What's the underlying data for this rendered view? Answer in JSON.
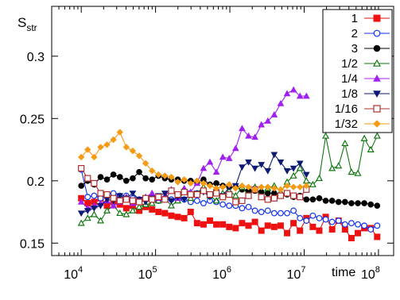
{
  "chart_data": {
    "type": "line",
    "title": "",
    "ylabel": "S",
    "ylabel_sub": "str",
    "xlabel": "time",
    "x_scale": "log",
    "xlim": [
      4000,
      160000000
    ],
    "ylim": [
      0.14,
      0.34
    ],
    "x_ticks": [
      {
        "value": 10000,
        "base": "10",
        "exp": "4"
      },
      {
        "value": 100000,
        "base": "10",
        "exp": "5"
      },
      {
        "value": 1000000,
        "base": "10",
        "exp": "6"
      },
      {
        "value": 10000000,
        "base": "10",
        "exp": "7"
      },
      {
        "value": 100000000,
        "base": "10",
        "exp": "8"
      }
    ],
    "y_ticks": [
      {
        "value": 0.15,
        "label": "0.15"
      },
      {
        "value": 0.2,
        "label": "0.2"
      },
      {
        "value": 0.25,
        "label": "0.25"
      },
      {
        "value": 0.3,
        "label": "0.3"
      }
    ],
    "grid": false,
    "legend_position": "top-right",
    "series": [
      {
        "name": "1",
        "color": "#ee1111",
        "marker": "square",
        "filled": true,
        "x": [
          10000,
          12200,
          14900,
          18200,
          22200,
          27100,
          33100,
          40400,
          49300,
          60200,
          73500,
          89700,
          109500,
          133600,
          163000,
          199000,
          243000,
          296500,
          362000,
          442000,
          539000,
          658000,
          803000,
          980000,
          1196000,
          1460000,
          1782000,
          2175000,
          2655000,
          3240000,
          3955000,
          4827000,
          5892000,
          7192000,
          8779000,
          10715000,
          13080000,
          15966000,
          19488000,
          23789000,
          29038000,
          35446000,
          43267000,
          52815000,
          64470000,
          78697000,
          96063000
        ],
        "y": [
          0.186,
          0.182,
          0.183,
          0.186,
          0.18,
          0.183,
          0.181,
          0.178,
          0.18,
          0.176,
          0.179,
          0.177,
          0.175,
          0.174,
          0.172,
          0.171,
          0.17,
          0.175,
          0.166,
          0.165,
          0.168,
          0.165,
          0.165,
          0.163,
          0.162,
          0.166,
          0.164,
          0.167,
          0.16,
          0.164,
          0.163,
          0.164,
          0.158,
          0.166,
          0.16,
          0.17,
          0.163,
          0.16,
          0.171,
          0.161,
          0.168,
          0.161,
          0.154,
          0.158,
          0.162,
          0.162,
          0.155
        ]
      },
      {
        "name": "2",
        "color": "#1133ee",
        "marker": "circle-open",
        "filled": false,
        "x": [
          10000,
          12200,
          14900,
          18200,
          22200,
          27100,
          33100,
          40400,
          49300,
          60200,
          73500,
          89700,
          109500,
          133600,
          163000,
          199000,
          243000,
          296500,
          362000,
          442000,
          539000,
          658000,
          803000,
          980000,
          1196000,
          1460000,
          1782000,
          2175000,
          2655000,
          3240000,
          3955000,
          4827000,
          5892000,
          7192000,
          8779000,
          10715000,
          13080000,
          15966000,
          19488000,
          23789000,
          29038000,
          35446000,
          43267000,
          52815000,
          64470000,
          78697000,
          96063000
        ],
        "y": [
          0.209,
          0.187,
          0.188,
          0.186,
          0.189,
          0.19,
          0.188,
          0.188,
          0.186,
          0.185,
          0.185,
          0.184,
          0.184,
          0.186,
          0.185,
          0.185,
          0.185,
          0.183,
          0.184,
          0.182,
          0.184,
          0.183,
          0.181,
          0.18,
          0.18,
          0.178,
          0.179,
          0.176,
          0.175,
          0.176,
          0.174,
          0.174,
          0.174,
          0.176,
          0.17,
          0.168,
          0.172,
          0.17,
          0.169,
          0.167,
          0.168,
          0.165,
          0.166,
          0.165,
          0.164,
          0.161,
          0.164
        ]
      },
      {
        "name": "3",
        "color": "#000000",
        "marker": "circle",
        "filled": true,
        "x": [
          10000,
          12200,
          14900,
          18200,
          22200,
          27100,
          33100,
          40400,
          49300,
          60200,
          73500,
          89700,
          109500,
          133600,
          163000,
          199000,
          243000,
          296500,
          362000,
          442000,
          539000,
          658000,
          803000,
          980000,
          1196000,
          1460000,
          1782000,
          2175000,
          2655000,
          3240000,
          3955000,
          4827000,
          5892000,
          7192000,
          8779000,
          10715000,
          13080000,
          15966000,
          19488000,
          23789000,
          29038000,
          35446000,
          43267000,
          52815000,
          64470000,
          78697000,
          96063000
        ],
        "y": [
          0.196,
          0.2,
          0.197,
          0.203,
          0.201,
          0.205,
          0.203,
          0.2,
          0.202,
          0.207,
          0.202,
          0.201,
          0.204,
          0.202,
          0.201,
          0.201,
          0.2,
          0.2,
          0.199,
          0.201,
          0.197,
          0.198,
          0.196,
          0.195,
          0.195,
          0.193,
          0.192,
          0.192,
          0.191,
          0.19,
          0.19,
          0.189,
          0.189,
          0.187,
          0.188,
          0.185,
          0.185,
          0.186,
          0.184,
          0.184,
          0.183,
          0.183,
          0.182,
          0.182,
          0.182,
          0.181,
          0.18
        ]
      },
      {
        "name": "1/2",
        "color": "#117711",
        "marker": "triangle-open",
        "filled": false,
        "x": [
          10000,
          12200,
          14900,
          18200,
          22200,
          27100,
          33100,
          40400,
          49300,
          60200,
          73500,
          89700,
          109500,
          133600,
          163000,
          199000,
          243000,
          296500,
          362000,
          442000,
          539000,
          658000,
          803000,
          980000,
          1196000,
          1460000,
          1782000,
          2175000,
          2655000,
          3240000,
          3955000,
          4827000,
          5892000,
          7192000,
          8779000,
          10715000,
          13080000,
          15966000,
          19488000,
          23789000,
          29038000,
          35446000,
          43267000,
          52815000,
          64470000,
          78697000,
          96063000
        ],
        "y": [
          0.166,
          0.17,
          0.173,
          0.168,
          0.176,
          0.18,
          0.174,
          0.173,
          0.176,
          0.179,
          0.181,
          0.182,
          0.184,
          0.186,
          0.18,
          0.184,
          0.191,
          0.186,
          0.19,
          0.195,
          0.188,
          0.184,
          0.19,
          0.192,
          0.188,
          0.195,
          0.188,
          0.195,
          0.187,
          0.194,
          0.196,
          0.191,
          0.199,
          0.204,
          0.21,
          0.2,
          0.197,
          0.202,
          0.236,
          0.21,
          0.212,
          0.23,
          0.207,
          0.206,
          0.234,
          0.225,
          0.236
        ]
      },
      {
        "name": "1/4",
        "color": "#a020f0",
        "marker": "triangle",
        "filled": true,
        "x": [
          10000,
          12200,
          14900,
          18200,
          22200,
          27100,
          33100,
          40400,
          49300,
          60200,
          73500,
          89700,
          109500,
          133600,
          163000,
          199000,
          243000,
          296500,
          362000,
          442000,
          539000,
          658000,
          803000,
          980000,
          1196000,
          1460000,
          1782000,
          2175000,
          2655000,
          3240000,
          3955000,
          4827000,
          5892000,
          7192000,
          8779000,
          10715000
        ],
        "y": [
          0.183,
          0.178,
          0.18,
          0.182,
          0.184,
          0.18,
          0.183,
          0.187,
          0.182,
          0.185,
          0.187,
          0.19,
          0.186,
          0.188,
          0.193,
          0.186,
          0.194,
          0.191,
          0.198,
          0.21,
          0.215,
          0.207,
          0.219,
          0.218,
          0.226,
          0.242,
          0.236,
          0.235,
          0.245,
          0.248,
          0.253,
          0.262,
          0.27,
          0.273,
          0.268,
          0.268
        ]
      },
      {
        "name": "1/8",
        "color": "#0d1a75",
        "marker": "triangle-down",
        "filled": true,
        "x": [
          10000,
          12200,
          14900,
          18200,
          22200,
          27100,
          33100,
          40400,
          49300,
          60200,
          73500,
          89700,
          109500,
          133600,
          163000,
          199000,
          243000,
          296500,
          362000,
          442000,
          539000,
          658000,
          803000,
          980000,
          1196000,
          1460000,
          1782000,
          2175000,
          2655000,
          3240000,
          3955000,
          4827000,
          5892000,
          7192000,
          8779000,
          10715000
        ],
        "y": [
          0.174,
          0.176,
          0.178,
          0.18,
          0.185,
          0.184,
          0.188,
          0.186,
          0.19,
          0.185,
          0.183,
          0.186,
          0.188,
          0.19,
          0.184,
          0.187,
          0.185,
          0.189,
          0.19,
          0.191,
          0.187,
          0.191,
          0.188,
          0.195,
          0.196,
          0.211,
          0.215,
          0.21,
          0.213,
          0.208,
          0.221,
          0.215,
          0.208,
          0.21,
          0.214,
          0.205
        ]
      },
      {
        "name": "1/16",
        "color": "#b03030",
        "marker": "square-open",
        "filled": false,
        "x": [
          10000,
          12200,
          14900,
          18200,
          22200,
          27100,
          33100,
          40400,
          49300,
          60200,
          73500,
          89700,
          109500,
          133600,
          163000,
          199000,
          243000,
          296500,
          362000,
          442000,
          539000,
          658000,
          803000,
          980000,
          1196000,
          1460000,
          1782000,
          2175000,
          2655000,
          3240000,
          3955000,
          4827000,
          5892000,
          7192000,
          8779000,
          10715000
        ],
        "y": [
          0.21,
          0.202,
          0.198,
          0.19,
          0.189,
          0.186,
          0.184,
          0.185,
          0.184,
          0.183,
          0.186,
          0.185,
          0.187,
          0.185,
          0.192,
          0.189,
          0.191,
          0.189,
          0.189,
          0.192,
          0.189,
          0.19,
          0.187,
          0.189,
          0.183,
          0.184,
          0.188,
          0.193,
          0.187,
          0.185,
          0.186,
          0.188,
          0.19,
          0.188,
          0.187,
          0.193
        ]
      },
      {
        "name": "1/32",
        "color": "#f59b16",
        "marker": "diamond",
        "filled": true,
        "x": [
          10000,
          12200,
          14900,
          18200,
          22200,
          27100,
          33100,
          40400,
          49300,
          60200,
          73500,
          89700,
          109500,
          133600,
          163000,
          199000,
          243000,
          296500,
          362000,
          442000,
          539000,
          658000,
          803000,
          980000,
          1196000,
          1460000,
          1782000,
          2175000,
          2655000,
          3240000,
          3955000,
          4827000,
          5892000,
          7192000,
          8779000,
          10715000
        ],
        "y": [
          0.219,
          0.225,
          0.219,
          0.227,
          0.229,
          0.233,
          0.239,
          0.227,
          0.224,
          0.22,
          0.214,
          0.208,
          0.205,
          0.204,
          0.203,
          0.199,
          0.201,
          0.198,
          0.2,
          0.198,
          0.196,
          0.194,
          0.195,
          0.197,
          0.194,
          0.196,
          0.195,
          0.193,
          0.195,
          0.195,
          0.194,
          0.193,
          0.196,
          0.195,
          0.195,
          0.196
        ]
      }
    ]
  }
}
